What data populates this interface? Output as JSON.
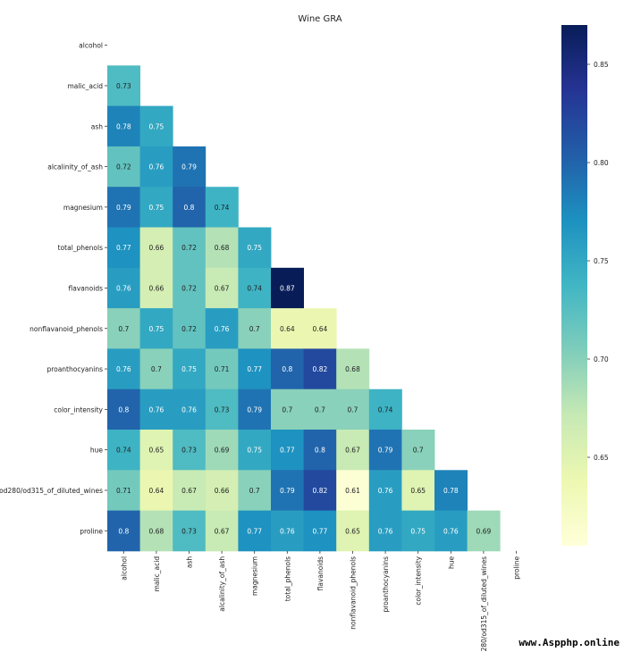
{
  "chart_data": {
    "type": "heatmap",
    "title": "Wine GRA",
    "labels": [
      "alcohol",
      "malic_acid",
      "ash",
      "alcalinity_of_ash",
      "magnesium",
      "total_phenols",
      "flavanoids",
      "nonflavanoid_phenols",
      "proanthocyanins",
      "color_intensity",
      "hue",
      "od280/od315_of_diluted_wines",
      "proline"
    ],
    "matrix": [
      [],
      [
        "0.73"
      ],
      [
        "0.78",
        "0.75"
      ],
      [
        "0.72",
        "0.76",
        "0.79"
      ],
      [
        "0.79",
        "0.75",
        "0.8",
        "0.74"
      ],
      [
        "0.77",
        "0.66",
        "0.72",
        "0.68",
        "0.75"
      ],
      [
        "0.76",
        "0.66",
        "0.72",
        "0.67",
        "0.74",
        "0.87"
      ],
      [
        "0.7",
        "0.75",
        "0.72",
        "0.76",
        "0.7",
        "0.64",
        "0.64"
      ],
      [
        "0.76",
        "0.7",
        "0.75",
        "0.71",
        "0.77",
        "0.8",
        "0.82",
        "0.68"
      ],
      [
        "0.8",
        "0.76",
        "0.76",
        "0.73",
        "0.79",
        "0.7",
        "0.7",
        "0.7",
        "0.74"
      ],
      [
        "0.74",
        "0.65",
        "0.73",
        "0.69",
        "0.75",
        "0.77",
        "0.8",
        "0.67",
        "0.79",
        "0.7"
      ],
      [
        "0.71",
        "0.64",
        "0.67",
        "0.66",
        "0.7",
        "0.79",
        "0.82",
        "0.61",
        "0.76",
        "0.65",
        "0.78"
      ],
      [
        "0.8",
        "0.68",
        "0.73",
        "0.67",
        "0.77",
        "0.76",
        "0.77",
        "0.65",
        "0.76",
        "0.75",
        "0.76",
        "0.69"
      ]
    ],
    "mask": "upper triangle including diagonal",
    "colormap": "YlGnBu",
    "colorbar": {
      "min": 0.605,
      "max": 0.87,
      "ticks": [
        "0.65",
        "0.70",
        "0.75",
        "0.80",
        "0.85"
      ]
    }
  },
  "watermark": "www.Aspphp.online"
}
